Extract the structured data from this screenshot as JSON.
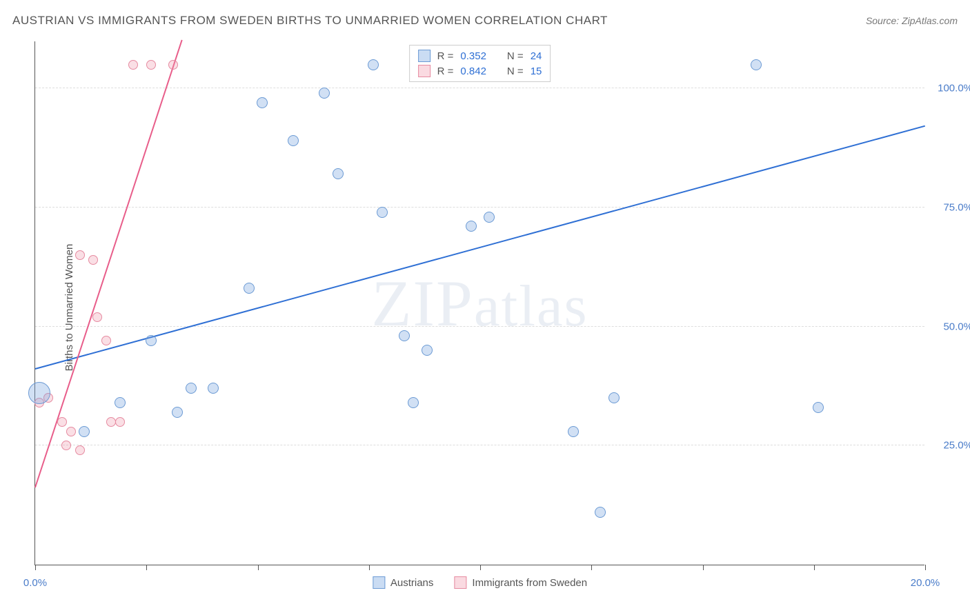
{
  "header": {
    "title": "AUSTRIAN VS IMMIGRANTS FROM SWEDEN BIRTHS TO UNMARRIED WOMEN CORRELATION CHART",
    "source": "Source: ZipAtlas.com"
  },
  "axes": {
    "ylabel": "Births to Unmarried Women",
    "xlim": [
      0,
      20
    ],
    "ylim": [
      0,
      110
    ],
    "yticks": [
      {
        "value": 25,
        "label": "25.0%"
      },
      {
        "value": 50,
        "label": "50.0%"
      },
      {
        "value": 75,
        "label": "75.0%"
      },
      {
        "value": 100,
        "label": "100.0%"
      }
    ],
    "xticks": [
      {
        "value": 0,
        "label": "0.0%"
      },
      {
        "value": 2.5,
        "label": ""
      },
      {
        "value": 5.0,
        "label": ""
      },
      {
        "value": 7.5,
        "label": ""
      },
      {
        "value": 10.0,
        "label": ""
      },
      {
        "value": 12.5,
        "label": ""
      },
      {
        "value": 15.0,
        "label": ""
      },
      {
        "value": 17.5,
        "label": ""
      },
      {
        "value": 20.0,
        "label": "20.0%"
      }
    ]
  },
  "series": {
    "blue": {
      "name": "Austrians",
      "r": "0.352",
      "n": "24",
      "point_fill": "rgba(122,167,224,0.35)",
      "point_stroke": "#6b9ad4",
      "line_color": "#2e6fd4",
      "trend": {
        "x1": 0,
        "y1": 41,
        "x2": 20,
        "y2": 92
      },
      "points": [
        {
          "x": 0.1,
          "y": 36,
          "r": 16
        },
        {
          "x": 1.1,
          "y": 28,
          "r": 8
        },
        {
          "x": 1.9,
          "y": 34,
          "r": 8
        },
        {
          "x": 2.6,
          "y": 47,
          "r": 8
        },
        {
          "x": 3.2,
          "y": 32,
          "r": 8
        },
        {
          "x": 3.5,
          "y": 37,
          "r": 8
        },
        {
          "x": 4.0,
          "y": 37,
          "r": 8
        },
        {
          "x": 4.8,
          "y": 58,
          "r": 8
        },
        {
          "x": 5.1,
          "y": 97,
          "r": 8
        },
        {
          "x": 5.8,
          "y": 89,
          "r": 8
        },
        {
          "x": 6.5,
          "y": 99,
          "r": 8
        },
        {
          "x": 6.8,
          "y": 82,
          "r": 8
        },
        {
          "x": 7.6,
          "y": 105,
          "r": 8
        },
        {
          "x": 7.8,
          "y": 74,
          "r": 8
        },
        {
          "x": 8.3,
          "y": 48,
          "r": 8
        },
        {
          "x": 8.5,
          "y": 34,
          "r": 8
        },
        {
          "x": 8.8,
          "y": 45,
          "r": 8
        },
        {
          "x": 9.8,
          "y": 71,
          "r": 8
        },
        {
          "x": 10.2,
          "y": 73,
          "r": 8
        },
        {
          "x": 12.1,
          "y": 28,
          "r": 8
        },
        {
          "x": 12.7,
          "y": 11,
          "r": 8
        },
        {
          "x": 13.0,
          "y": 35,
          "r": 8
        },
        {
          "x": 16.2,
          "y": 105,
          "r": 8
        },
        {
          "x": 17.6,
          "y": 33,
          "r": 8
        }
      ]
    },
    "pink": {
      "name": "Immigrants from Sweden",
      "r": "0.842",
      "n": "15",
      "point_fill": "rgba(240,150,170,0.3)",
      "point_stroke": "#e68aa0",
      "line_color": "#e85d8a",
      "trend": {
        "x1": 0,
        "y1": 16,
        "x2": 3.3,
        "y2": 110
      },
      "points": [
        {
          "x": 0.1,
          "y": 34,
          "r": 7
        },
        {
          "x": 0.3,
          "y": 35,
          "r": 7
        },
        {
          "x": 0.6,
          "y": 30,
          "r": 7
        },
        {
          "x": 0.7,
          "y": 25,
          "r": 7
        },
        {
          "x": 0.8,
          "y": 28,
          "r": 7
        },
        {
          "x": 1.0,
          "y": 65,
          "r": 7
        },
        {
          "x": 1.0,
          "y": 24,
          "r": 7
        },
        {
          "x": 1.3,
          "y": 64,
          "r": 7
        },
        {
          "x": 1.4,
          "y": 52,
          "r": 7
        },
        {
          "x": 1.6,
          "y": 47,
          "r": 7
        },
        {
          "x": 1.7,
          "y": 30,
          "r": 7
        },
        {
          "x": 1.9,
          "y": 30,
          "r": 7
        },
        {
          "x": 2.2,
          "y": 105,
          "r": 7
        },
        {
          "x": 2.6,
          "y": 105,
          "r": 7
        },
        {
          "x": 3.1,
          "y": 105,
          "r": 7
        }
      ]
    }
  },
  "legend_top": {
    "r_label": "R =",
    "n_label": "N ="
  },
  "watermark": "ZIPatlas",
  "colors": {
    "text": "#555555",
    "link": "#2e6fd4",
    "grid": "#dddddd",
    "axis": "#555555",
    "bg": "#ffffff"
  }
}
